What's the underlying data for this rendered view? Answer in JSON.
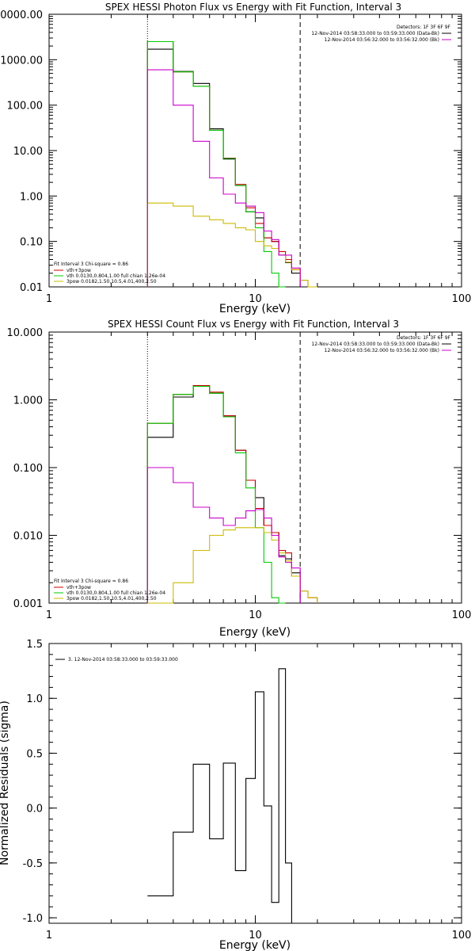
{
  "chart_data": [
    {
      "type": "line",
      "title": "SPEX HESSI Photon Flux vs Energy with Fit Function, Interval 3",
      "xlabel": "Energy (keV)",
      "ylabel": "",
      "xscale": "log",
      "yscale": "log",
      "xlim": [
        1,
        100
      ],
      "ylim": [
        0.01,
        10000
      ],
      "xticks": [
        "1",
        "10",
        "100"
      ],
      "yticks": [
        "10000.00",
        "1000.00",
        "100.00",
        "10.00",
        "1.00",
        "0.10",
        "0.01"
      ],
      "vlines": [
        {
          "x": 3,
          "style": "dotted"
        },
        {
          "x": 16.5,
          "style": "dashed"
        }
      ],
      "header": {
        "detectors": "Detectors: 1F 3F 6F 9F",
        "rows": [
          {
            "text": "12-Nov-2014 03:58:33.000 to 03:59:33.000 (Data-Bk)",
            "color": "#000000"
          },
          {
            "text": "12-Nov-2014 03:56:32.000 to 03:56:32.000 (Bk)",
            "color": "#cc00cc"
          }
        ]
      },
      "legend": {
        "position": "bottom-left",
        "title": "Fit Interval 3   Chi-square = 0.86",
        "entries": [
          {
            "name": "vth+3pow",
            "color": "#cc0000"
          },
          {
            "name": "vth 0.0130,0.804,1.00  full chian 1.26e-04",
            "color": "#00cc00"
          },
          {
            "name": "3pow 0.0182,1.50,10.5,4.01,400,2.50",
            "color": "#ccbb00"
          }
        ]
      },
      "edges": [
        3,
        4,
        5,
        6,
        7,
        8,
        9,
        10,
        11,
        12,
        13,
        14,
        15,
        16.5,
        18,
        20
      ],
      "series": [
        {
          "name": "Data-Bk",
          "color": "#000000",
          "values": [
            1700,
            550,
            300,
            30,
            6.5,
            1.7,
            0.45,
            0.33,
            0.12,
            0.1,
            0.05,
            0.034,
            0.02,
            null,
            null
          ]
        },
        {
          "name": "vth+3pow",
          "color": "#cc0000",
          "values": [
            2500,
            540,
            260,
            28,
            6.8,
            1.8,
            0.55,
            0.25,
            0.12,
            0.1,
            0.06,
            0.04,
            0.024,
            0.014,
            0.01
          ]
        },
        {
          "name": "vth",
          "color": "#00cc00",
          "values": [
            2500,
            540,
            260,
            28,
            6.7,
            1.7,
            0.45,
            0.2,
            0.06,
            0.02,
            0.008,
            null,
            null,
            null,
            null
          ]
        },
        {
          "name": "3pow",
          "color": "#ccbb00",
          "values": [
            0.7,
            0.6,
            0.36,
            0.3,
            0.25,
            0.2,
            0.18,
            0.1,
            0.08,
            0.07,
            0.05,
            0.035,
            0.024,
            0.014,
            0.01
          ]
        },
        {
          "name": "Bk",
          "color": "#cc00cc",
          "values": [
            600,
            100,
            16,
            2.5,
            1.1,
            0.7,
            0.6,
            0.43,
            0.17,
            0.11,
            0.05,
            0.05,
            0.026,
            null,
            null
          ]
        }
      ]
    },
    {
      "type": "line",
      "title": "SPEX HESSI Count Flux vs Energy with Fit Function, Interval 3",
      "xlabel": "Energy (keV)",
      "ylabel": "",
      "xscale": "log",
      "yscale": "log",
      "xlim": [
        1,
        100
      ],
      "ylim": [
        0.001,
        10
      ],
      "xticks": [
        "1",
        "10",
        "100"
      ],
      "yticks": [
        "10.000",
        "1.000",
        "0.100",
        "0.010",
        "0.001"
      ],
      "vlines": [
        {
          "x": 3,
          "style": "dotted"
        },
        {
          "x": 16.5,
          "style": "dashed"
        }
      ],
      "header": {
        "detectors": "Detectors: 1F 3F 6F 9F",
        "rows": [
          {
            "text": "12-Nov-2014 03:58:33.000 to 03:59:33.000 (Data-Bk)",
            "color": "#000000"
          },
          {
            "text": "12-Nov-2014 03:56:32.000 to 03:56:32.000 (Bk)",
            "color": "#cc00cc"
          }
        ]
      },
      "legend": {
        "position": "bottom-left",
        "title": "Fit Interval 3   Chi-square = 0.86",
        "entries": [
          {
            "name": "vth+3pow",
            "color": "#cc0000"
          },
          {
            "name": "vth 0.0130,0.804,1.00  full chian 1.26e-04",
            "color": "#00cc00"
          },
          {
            "name": "3pow 0.0182,1.50,10.5,4.01,400,2.50",
            "color": "#ccbb00"
          }
        ]
      },
      "edges": [
        3,
        4,
        5,
        6,
        7,
        8,
        9,
        10,
        11,
        12,
        13,
        14,
        15,
        16.5,
        18,
        20
      ],
      "series": [
        {
          "name": "Data-Bk",
          "color": "#000000",
          "values": [
            0.28,
            1.1,
            1.6,
            1.25,
            0.58,
            0.18,
            0.065,
            0.036,
            0.014,
            0.011,
            0.005,
            0.0045,
            0.0028,
            null,
            null
          ]
        },
        {
          "name": "vth+3pow",
          "color": "#cc0000",
          "values": [
            0.45,
            1.2,
            1.62,
            1.3,
            0.58,
            0.18,
            0.065,
            0.025,
            0.014,
            0.011,
            0.006,
            0.0055,
            0.0025,
            0.0015,
            0.0012
          ]
        },
        {
          "name": "vth",
          "color": "#00cc00",
          "values": [
            0.45,
            1.2,
            1.58,
            1.25,
            0.56,
            0.165,
            0.05,
            0.013,
            0.004,
            0.0012,
            0.0005,
            null,
            null,
            null,
            null
          ]
        },
        {
          "name": "3pow",
          "color": "#ccbb00",
          "values": [
            0.0008,
            0.002,
            0.006,
            0.01,
            0.012,
            0.013,
            0.013,
            0.013,
            0.011,
            0.0085,
            0.0055,
            0.0042,
            0.0025,
            0.0015,
            0.0012
          ]
        },
        {
          "name": "Bk",
          "color": "#cc00cc",
          "values": [
            0.1,
            0.06,
            0.026,
            0.018,
            0.014,
            0.018,
            0.023,
            0.024,
            0.018,
            0.01,
            0.0048,
            0.004,
            0.0033,
            null,
            null
          ]
        }
      ]
    },
    {
      "type": "line",
      "title": "",
      "xlabel": "Energy (keV)",
      "ylabel": "Normalized Residuals (sigma)",
      "xscale": "log",
      "yscale": "linear",
      "xlim": [
        1,
        100
      ],
      "ylim": [
        -1.05,
        1.5
      ],
      "xticks": [
        "1",
        "10",
        "100"
      ],
      "yticks": [
        "1.5",
        "1.0",
        "0.5",
        "0.0",
        "-0.5",
        "-1.0"
      ],
      "legend": {
        "position": "top-left",
        "entries": [
          {
            "name": "3. 12-Nov-2014 03:58:33.000 to 03:59:33.000",
            "color": "#000000"
          }
        ]
      },
      "edges": [
        3,
        4,
        5,
        6,
        7,
        8,
        9,
        10,
        11,
        12,
        13,
        14,
        15,
        16.5
      ],
      "series": [
        {
          "name": "",
          "color": "#000000",
          "values": [
            -0.8,
            -0.22,
            0.4,
            -0.28,
            0.41,
            -0.57,
            0.27,
            1.06,
            0.02,
            -0.86,
            1.27,
            -0.5,
            -1.05
          ]
        }
      ]
    }
  ]
}
